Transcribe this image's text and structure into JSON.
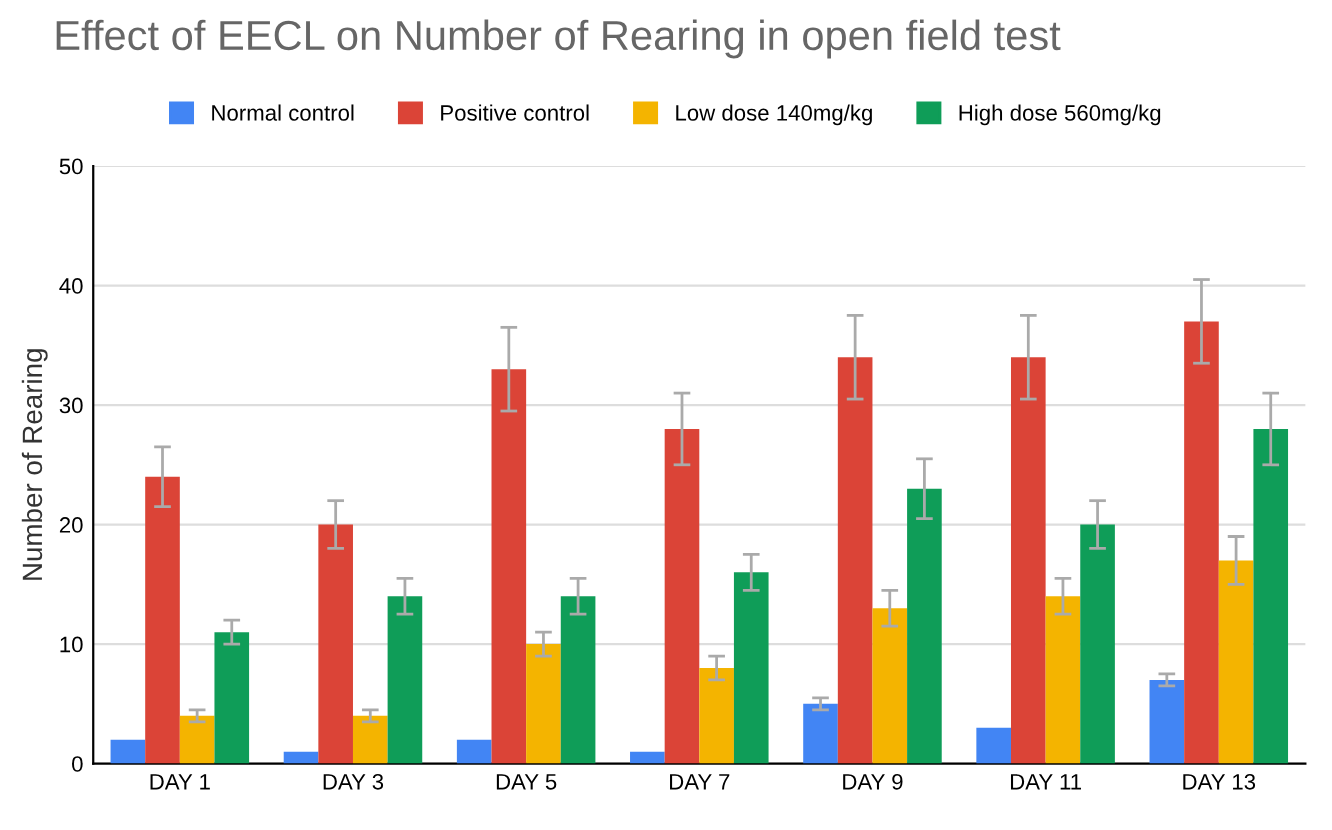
{
  "chart_data": {
    "type": "bar",
    "title": "Effect of EECL on Number of Rearing in open field test",
    "ylabel": "Number of Rearing",
    "categories": [
      "DAY 1",
      "DAY 3",
      "DAY 5",
      "DAY 7",
      "DAY 9",
      "DAY 11",
      "DAY 13"
    ],
    "series": [
      {
        "name": "Normal control",
        "color": "#4285f4",
        "values": [
          2,
          1,
          2,
          1,
          5,
          3,
          7
        ],
        "errors": [
          null,
          null,
          null,
          null,
          0.5,
          null,
          0.5
        ]
      },
      {
        "name": "Positive control",
        "color": "#db4437",
        "values": [
          24,
          20,
          33,
          28,
          34,
          34,
          37
        ],
        "errors": [
          2.5,
          2,
          3.5,
          3,
          3.5,
          3.5,
          3.5
        ]
      },
      {
        "name": "Low dose 140mg/kg",
        "color": "#f4b400",
        "values": [
          4,
          4,
          10,
          8,
          13,
          14,
          17
        ],
        "errors": [
          0.5,
          0.5,
          1,
          1,
          1.5,
          1.5,
          2
        ]
      },
      {
        "name": "High dose 560mg/kg",
        "color": "#0f9d58",
        "values": [
          11,
          14,
          14,
          16,
          23,
          20,
          28
        ],
        "errors": [
          1,
          1.5,
          1.5,
          1.5,
          2.5,
          2,
          3
        ]
      }
    ],
    "ylim": [
      0,
      50
    ],
    "yticks": [
      0,
      10,
      20,
      30,
      40,
      50
    ],
    "grid": "y",
    "legend": "top"
  }
}
